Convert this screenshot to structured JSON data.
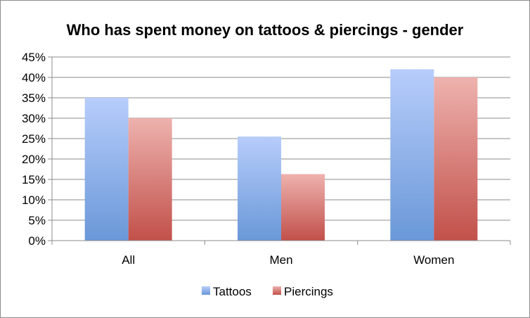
{
  "chart_data": {
    "type": "bar",
    "title": "Who has spent money on tattoos & piercings - gender",
    "categories": [
      "All",
      "Men",
      "Women"
    ],
    "series": [
      {
        "name": "Tattoos",
        "values": [
          35,
          25.5,
          42
        ],
        "color_top": "#b7cdfb",
        "color_bottom": "#6a98d8"
      },
      {
        "name": "Piercings",
        "values": [
          30,
          16.3,
          40
        ],
        "color_top": "#eeb2ae",
        "color_bottom": "#c2504a"
      }
    ],
    "y_ticks": [
      "0%",
      "5%",
      "10%",
      "15%",
      "20%",
      "25%",
      "30%",
      "35%",
      "40%",
      "45%"
    ],
    "ylim": [
      0,
      45
    ],
    "y_step": 5,
    "grid": true,
    "legend_position": "bottom"
  }
}
